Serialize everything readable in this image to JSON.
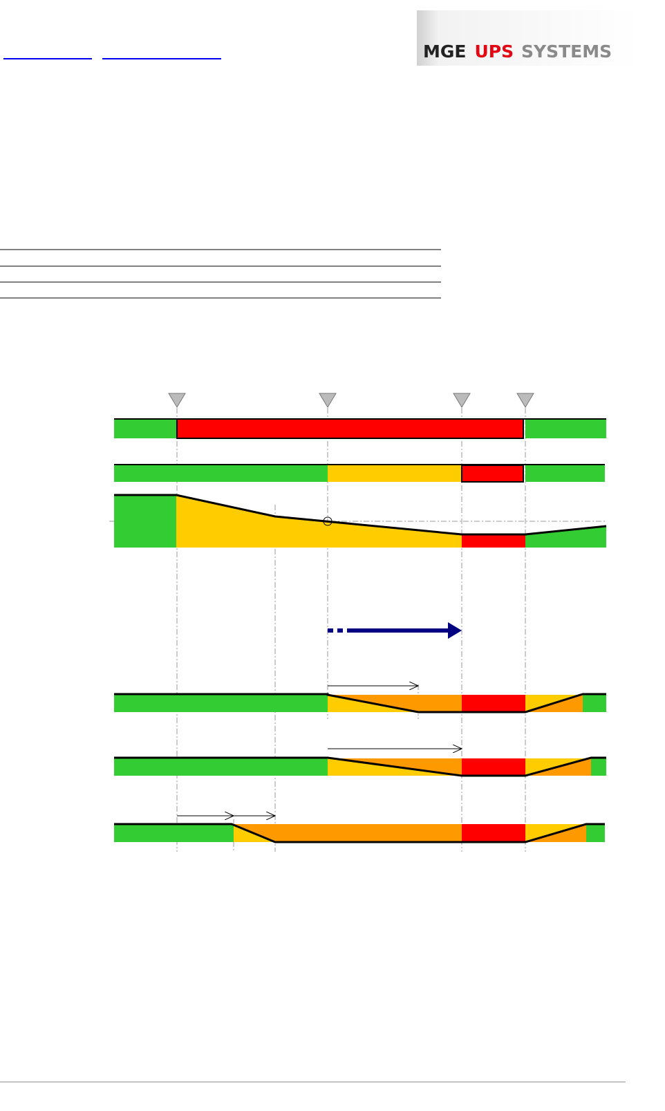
{
  "header": {
    "logo": {
      "mge": "MGE",
      "ups": "UPS",
      "systems": "SYSTEMS"
    }
  }
}
